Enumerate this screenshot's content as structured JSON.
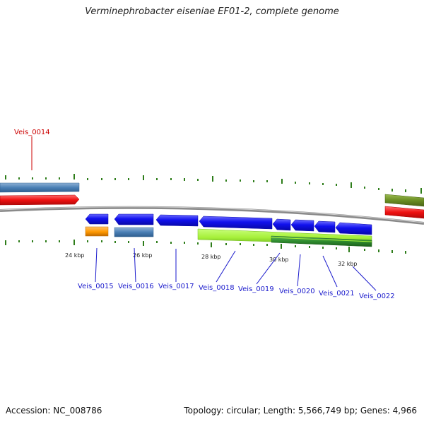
{
  "title": "Verminephrobacter eiseniae EF01-2, complete genome",
  "footer": {
    "accession": "Accession: NC_008786",
    "summary": "Topology: circular; Length: 5,566,749 bp; Genes: 4,966"
  },
  "colors": {
    "backbone": "#8a8a8a",
    "tick": "#2e7d1a",
    "cds_blue": "#1111ee",
    "steel_blue": "#4a7fb5",
    "red": "#ee1111",
    "orange": "#ff9900",
    "lime": "#a6f03a",
    "green": "#2e8b2e",
    "olive": "#6b8e23",
    "label_red": "#cc0000",
    "label_blue": "#1a1acc"
  },
  "scale": {
    "labels": [
      {
        "kbp": 24,
        "text": "24 kbp"
      },
      {
        "kbp": 26,
        "text": "26 kbp"
      },
      {
        "kbp": 28,
        "text": "28 kbp"
      },
      {
        "kbp": 30,
        "text": "30 kbp"
      },
      {
        "kbp": 32,
        "text": "32 kbp"
      }
    ]
  },
  "genes": [
    {
      "id": "Veis_0014",
      "label": "Veis_0014",
      "label_color": "label_red"
    },
    {
      "id": "Veis_0015",
      "label": "Veis_0015",
      "label_color": "label_blue"
    },
    {
      "id": "Veis_0016",
      "label": "Veis_0016",
      "label_color": "label_blue"
    },
    {
      "id": "Veis_0017",
      "label": "Veis_0017",
      "label_color": "label_blue"
    },
    {
      "id": "Veis_0018",
      "label": "Veis_0018",
      "label_color": "label_blue"
    },
    {
      "id": "Veis_0019",
      "label": "Veis_0019",
      "label_color": "label_blue"
    },
    {
      "id": "Veis_0020",
      "label": "Veis_0020",
      "label_color": "label_blue"
    },
    {
      "id": "Veis_0021",
      "label": "Veis_0021",
      "label_color": "label_blue"
    },
    {
      "id": "Veis_0022",
      "label": "Veis_0022",
      "label_color": "label_blue"
    }
  ]
}
